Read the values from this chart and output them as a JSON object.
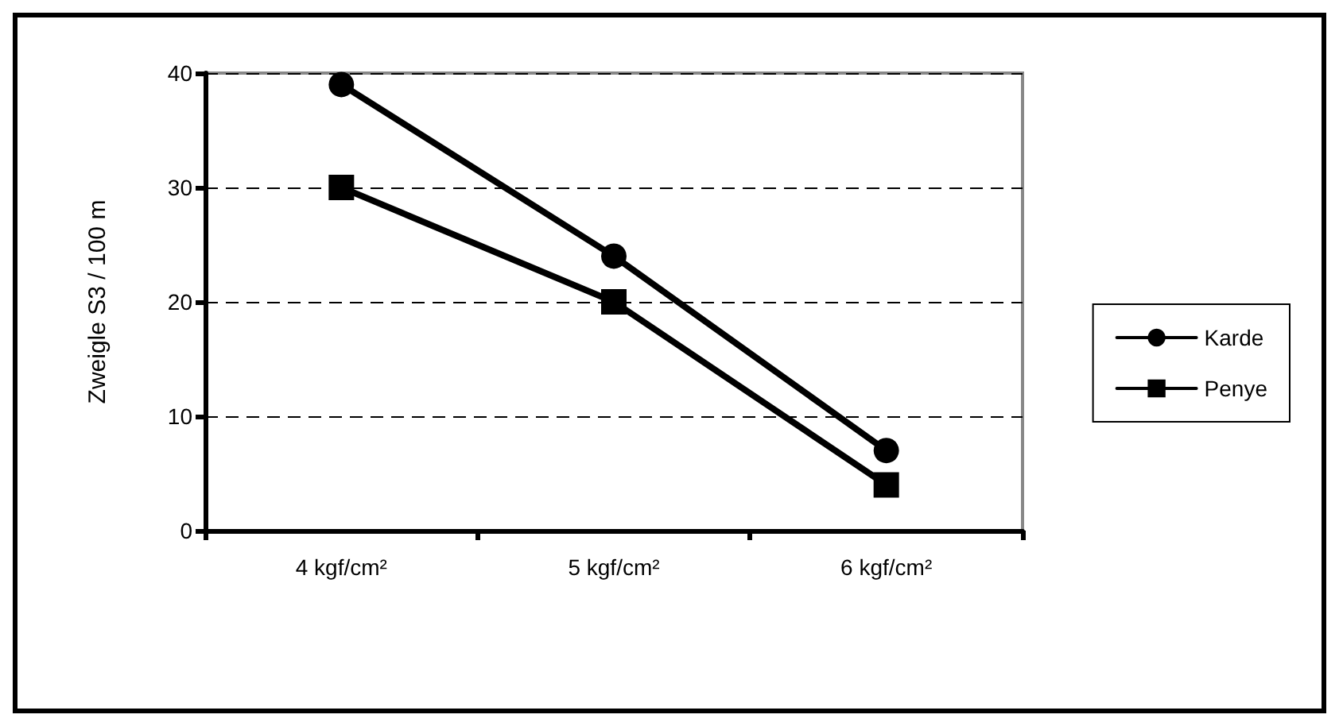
{
  "chart_data": {
    "type": "line",
    "ylabel": "Zweigle S3 / 100 m",
    "categories": [
      "4 kgf/cm²",
      "5 kgf/cm²",
      "6 kgf/cm²"
    ],
    "series": [
      {
        "name": "Karde",
        "color": "#000000",
        "marker": "circle",
        "values": [
          39,
          24,
          7
        ]
      },
      {
        "name": "Penye",
        "color": "#000000",
        "marker": "square",
        "values": [
          30,
          20,
          4
        ]
      }
    ],
    "ylim": [
      0,
      40
    ],
    "yticks": [
      0,
      10,
      20,
      30,
      40
    ],
    "grid": "y",
    "legend": "right",
    "line_style": "solid"
  }
}
